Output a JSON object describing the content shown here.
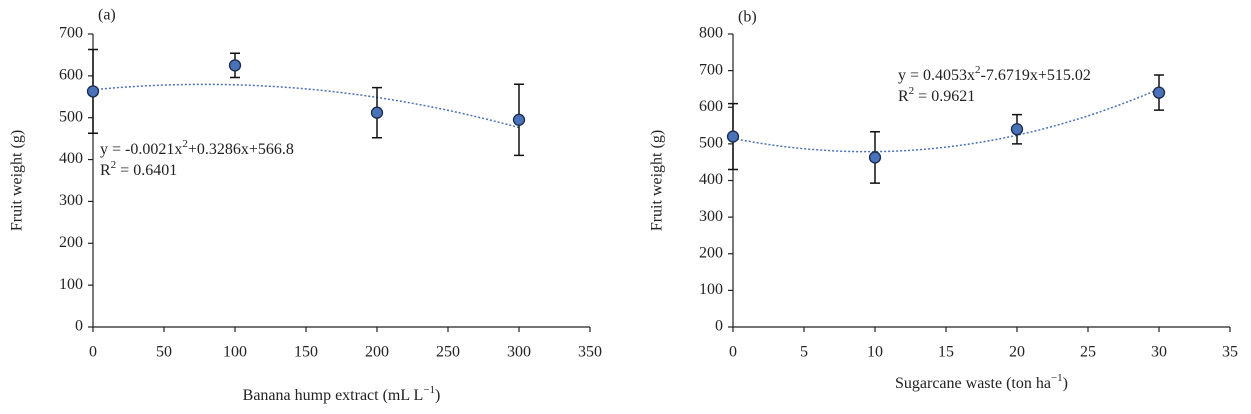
{
  "chart_data": [
    {
      "type": "scatter",
      "panel_label": "(a)",
      "x_label": [
        "Banana hump extract (mL L",
        "−1",
        ")"
      ],
      "y_label": "Fruit weight (g)",
      "x": [
        0,
        100,
        200,
        300
      ],
      "values": [
        563,
        625,
        512,
        495
      ],
      "errors": [
        100,
        29,
        60,
        85
      ],
      "color": "#4a72b8",
      "xlim": [
        0,
        350
      ],
      "xticks": [
        0,
        50,
        100,
        150,
        200,
        250,
        300,
        350
      ],
      "ylim": [
        0,
        700
      ],
      "yticks": [
        0,
        100,
        200,
        300,
        400,
        500,
        600,
        700
      ],
      "trendline": {
        "coefficients": [
          -0.0021,
          0.3286,
          566.8
        ],
        "equation": [
          "y = -0.0021x",
          "2",
          "+0.3286x+566.8"
        ],
        "r2": [
          "R",
          "2",
          " = 0.6401"
        ]
      }
    },
    {
      "type": "scatter",
      "panel_label": "(b)",
      "x_label": [
        "Sugarcane waste (ton ha",
        "−1",
        ")"
      ],
      "y_label": "Fruit weight (g)",
      "x": [
        0,
        10,
        20,
        30
      ],
      "values": [
        520,
        463,
        540,
        640
      ],
      "errors": [
        90,
        70,
        40,
        48
      ],
      "color": "#4a72b8",
      "xlim": [
        0,
        35
      ],
      "xticks": [
        0,
        5,
        10,
        15,
        20,
        25,
        30,
        35
      ],
      "ylim": [
        0,
        800
      ],
      "yticks": [
        0,
        100,
        200,
        300,
        400,
        500,
        600,
        700,
        800
      ],
      "trendline": {
        "coefficients": [
          0.4053,
          -7.6719,
          515.02
        ],
        "equation": [
          "y = 0.4053x",
          "2",
          "-7.6719x+515.02"
        ],
        "r2": [
          "R",
          "2",
          " = 0.9621"
        ]
      }
    }
  ]
}
